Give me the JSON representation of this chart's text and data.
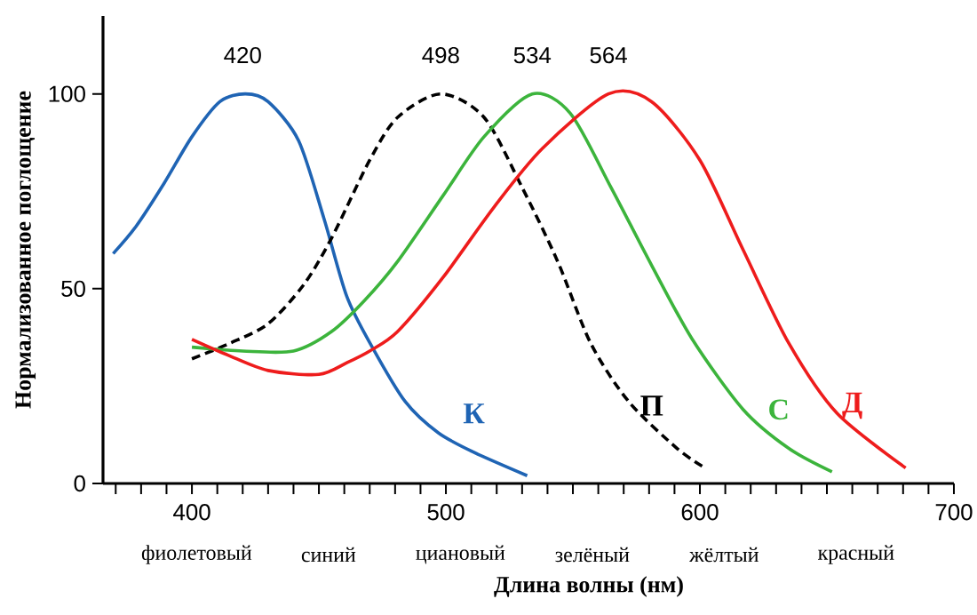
{
  "chart_data": {
    "type": "line",
    "xlabel": "Длина волны (нм)",
    "ylabel": "Нормализованное поглощение",
    "xlim": [
      365,
      700
    ],
    "ylim": [
      0,
      120
    ],
    "xticks": [
      {
        "value": 370,
        "label": null
      },
      {
        "value": 380,
        "label": null
      },
      {
        "value": 390,
        "label": null
      },
      400,
      {
        "value": 410,
        "label": null
      },
      {
        "value": 420,
        "label": null
      },
      {
        "value": 430,
        "label": null
      },
      {
        "value": 440,
        "label": null
      },
      {
        "value": 450,
        "label": null
      },
      {
        "value": 460,
        "label": null
      },
      {
        "value": 470,
        "label": null
      },
      {
        "value": 480,
        "label": null
      },
      {
        "value": 490,
        "label": null
      },
      500,
      {
        "value": 510,
        "label": null
      },
      {
        "value": 520,
        "label": null
      },
      {
        "value": 530,
        "label": null
      },
      {
        "value": 540,
        "label": null
      },
      {
        "value": 550,
        "label": null
      },
      {
        "value": 560,
        "label": null
      },
      {
        "value": 570,
        "label": null
      },
      {
        "value": 580,
        "label": null
      },
      {
        "value": 590,
        "label": null
      },
      600,
      {
        "value": 610,
        "label": null
      },
      {
        "value": 620,
        "label": null
      },
      {
        "value": 630,
        "label": null
      },
      {
        "value": 640,
        "label": null
      },
      {
        "value": 650,
        "label": null
      },
      {
        "value": 660,
        "label": null
      },
      {
        "value": 670,
        "label": null
      },
      {
        "value": 680,
        "label": null
      },
      {
        "value": 690,
        "label": null
      },
      700
    ],
    "yticks": [
      0,
      50,
      100
    ],
    "series": [
      {
        "name": "К",
        "color": "#1f64b4",
        "x": [
          369,
          378,
          389,
          400,
          411,
          421,
          430,
          442,
          452,
          461,
          471,
          484,
          497,
          511,
          532
        ],
        "values": [
          59,
          66,
          77,
          89,
          98,
          100,
          98,
          88,
          68,
          48,
          35,
          21,
          13,
          8,
          2
        ]
      },
      {
        "name": "П",
        "color": "#000000",
        "line_style": "dashed",
        "x": [
          400,
          415,
          430,
          444,
          455,
          470,
          481,
          498,
          515,
          530,
          544,
          557,
          572,
          591,
          602
        ],
        "values": [
          32,
          36,
          41,
          51,
          63,
          83,
          94,
          100,
          94,
          76,
          57,
          36,
          21,
          9,
          4
        ]
      },
      {
        "name": "С",
        "color": "#3cb43c",
        "x": [
          400,
          420,
          440,
          455,
          468,
          481,
          499,
          515,
          534,
          549,
          565,
          581,
          597,
          617,
          635,
          652
        ],
        "values": [
          35,
          34,
          34,
          39,
          47,
          57,
          74,
          89,
          100,
          95,
          76,
          56,
          37,
          19,
          9,
          3
        ]
      },
      {
        "name": "Д",
        "color": "#ee1c1c",
        "x": [
          400,
          414,
          430,
          450,
          461,
          470,
          481,
          499,
          519,
          538,
          564,
          581,
          600,
          617,
          635,
          654,
          681
        ],
        "values": [
          37,
          33,
          29,
          28,
          31,
          34,
          39,
          53,
          71,
          86,
          100,
          98,
          83,
          60,
          36,
          18,
          4
        ]
      }
    ],
    "annotations": [
      {
        "text": "420",
        "x": 420,
        "y": 100
      },
      {
        "text": "498",
        "x": 498,
        "y": 100
      },
      {
        "text": "534",
        "x": 534,
        "y": 100
      },
      {
        "text": "564",
        "x": 564,
        "y": 100
      },
      "фиолетовый",
      "синий",
      "циановый",
      "зелёный",
      "жёлтый",
      "красный"
    ]
  }
}
